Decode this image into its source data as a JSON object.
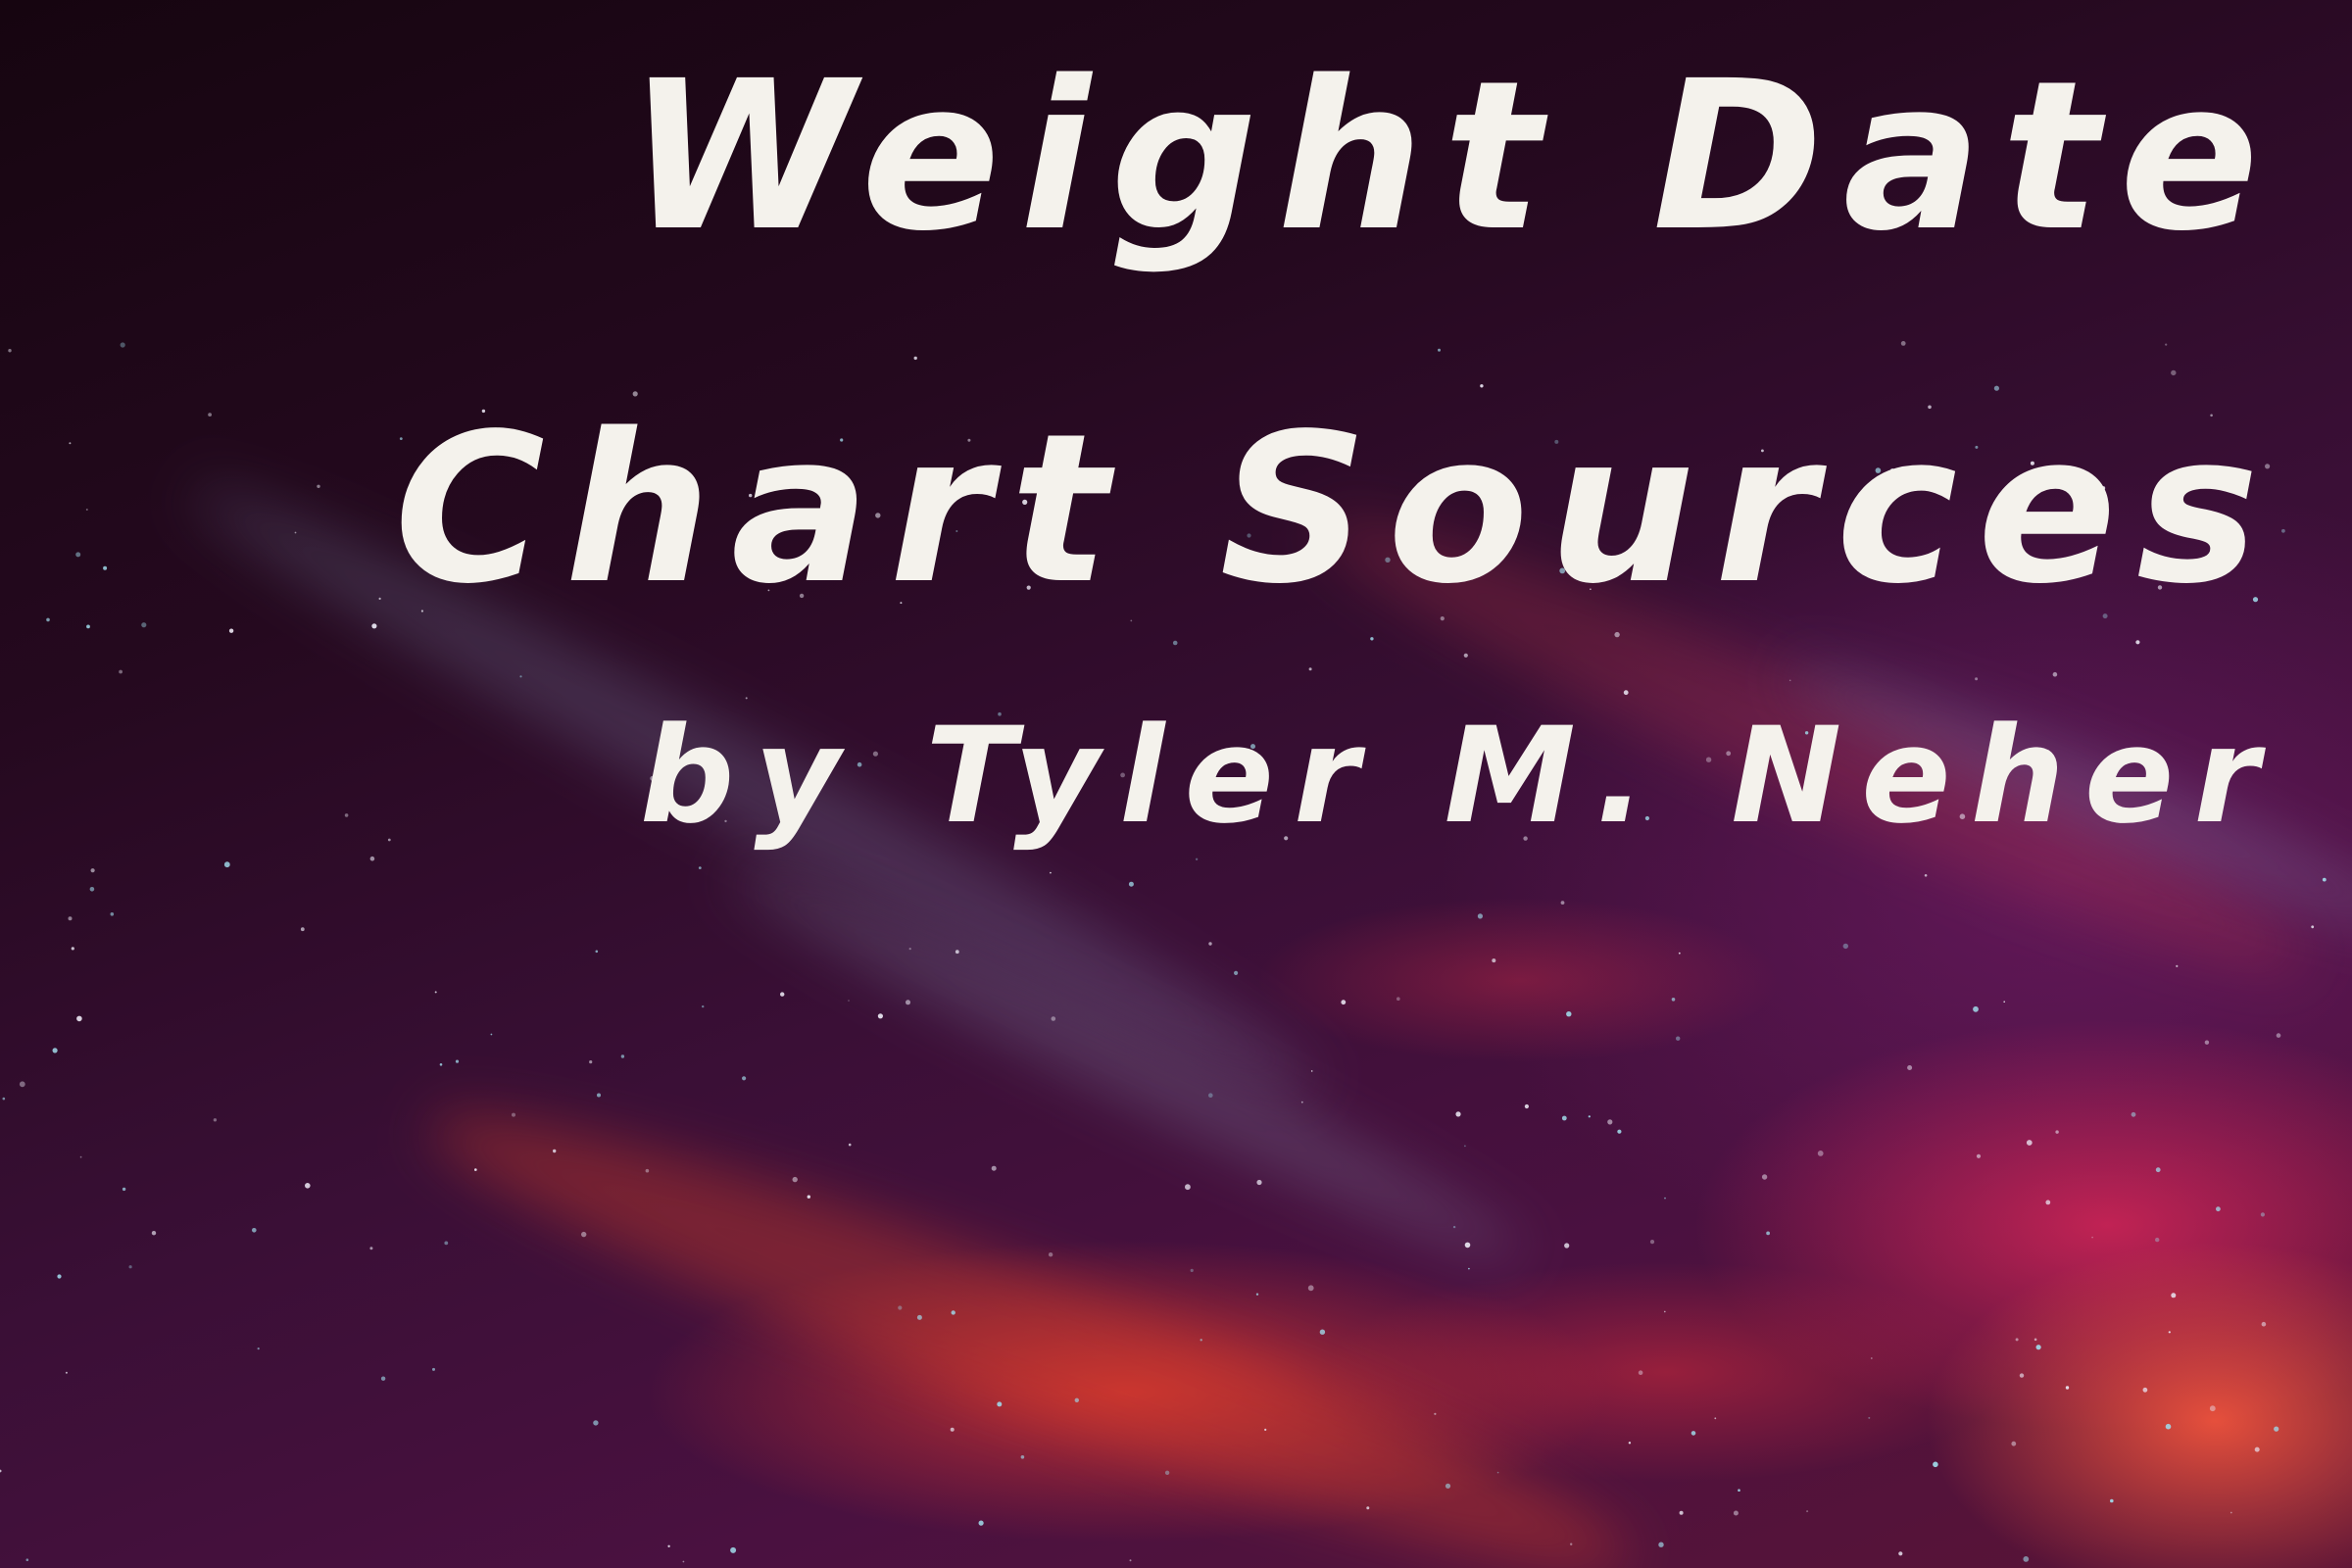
{
  "cover": {
    "title_line_1": "Weight Date",
    "title_line_2": "Chart Sources",
    "byline": "by Tyler M. Neher"
  },
  "colors": {
    "text": "#f4f2ec",
    "background_dark": "#1a0716",
    "nebula_red": "#e1372d",
    "nebula_magenta": "#e6285a",
    "nebula_purple": "#5a1436"
  }
}
